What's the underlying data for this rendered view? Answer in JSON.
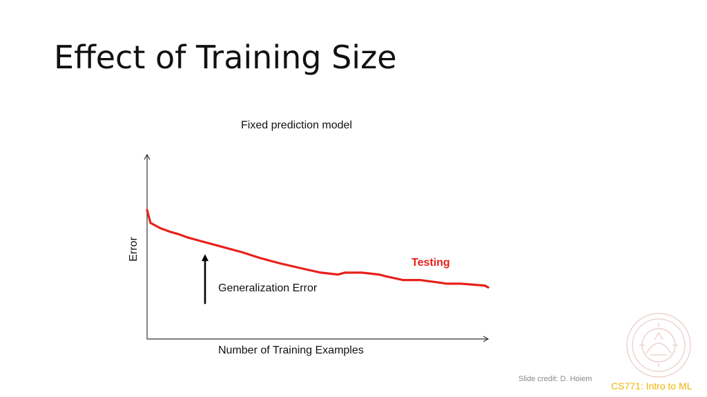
{
  "slide": {
    "title": "Effect of Training Size",
    "credit": "Slide credit: D. Hoiem",
    "course": "CS771: Intro to ML"
  },
  "colors": {
    "series": "#e8201a",
    "course": "#f0b400",
    "credit": "#888888",
    "axis": "#333333",
    "arrow": "#000000"
  },
  "chart_data": {
    "type": "line",
    "title": "Fixed prediction model",
    "xlabel": "Number of Training Examples",
    "ylabel": "Error",
    "xlim": [
      0,
      100
    ],
    "ylim": [
      0,
      100
    ],
    "grid": false,
    "axis_ticks": false,
    "series": [
      {
        "name": "Testing",
        "x": [
          0,
          1,
          2,
          4,
          7,
          9,
          12,
          16,
          20,
          24,
          28,
          33,
          39,
          46,
          51,
          56,
          58,
          63,
          68,
          70,
          75,
          80,
          84,
          88,
          92,
          99,
          100
        ],
        "y": [
          70,
          63,
          62,
          60,
          58,
          57,
          55,
          53,
          51,
          49,
          47,
          44,
          41,
          38,
          36,
          35,
          36,
          36,
          35,
          34,
          32,
          32,
          31,
          30,
          30,
          29,
          28
        ]
      }
    ],
    "annotations": [
      {
        "text": "Generalization Error",
        "type": "arrow-up",
        "x": 17,
        "y_from": 19,
        "y_to": 46
      }
    ]
  }
}
